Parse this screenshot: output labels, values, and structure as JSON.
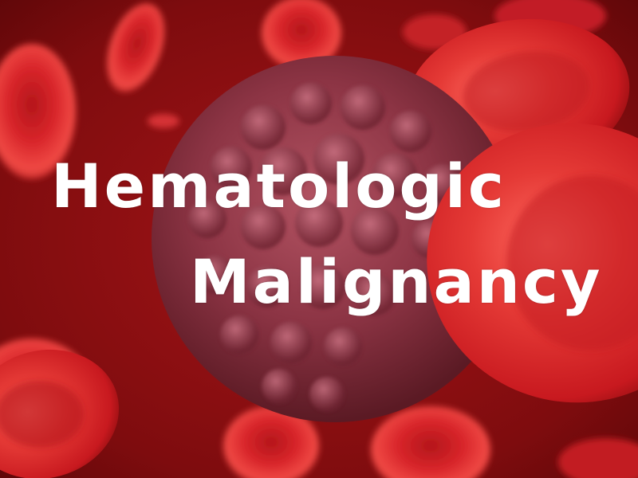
{
  "title": {
    "line1": "Hematologic",
    "line2": "Malignancy"
  },
  "colors": {
    "background": "#8a0f12",
    "red_cell": "#d8242a",
    "red_cell_highlight": "#ff5a55",
    "cancer_cell": "#8a3442",
    "text": "#ffffff"
  }
}
